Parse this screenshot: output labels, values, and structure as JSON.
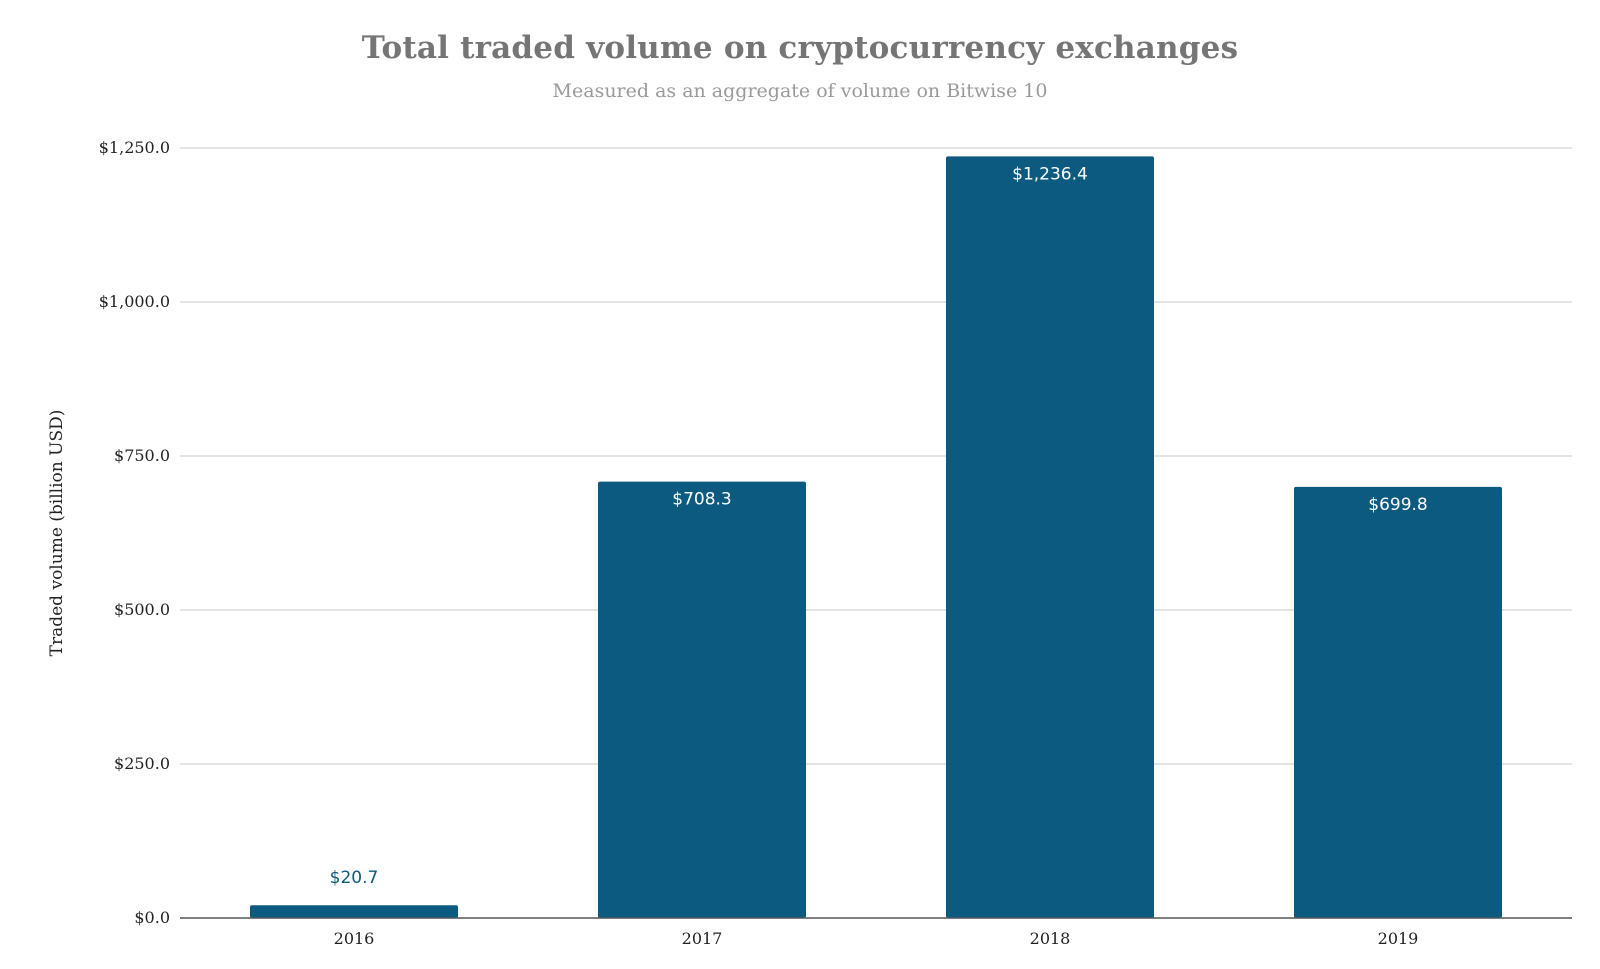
{
  "chart_data": {
    "type": "bar",
    "title": "Total traded volume on cryptocurrency exchanges",
    "subtitle": "Measured as an aggregate of volume on Bitwise 10",
    "xlabel": "",
    "ylabel": "Traded volume (billion USD)",
    "categories": [
      "2016",
      "2017",
      "2018",
      "2019"
    ],
    "values": [
      20.7,
      708.3,
      1236.4,
      699.8
    ],
    "value_labels": [
      "$20.7",
      "$708.3",
      "$1,236.4",
      "$699.8"
    ],
    "ylim": [
      0,
      1250
    ],
    "y_ticks": [
      0,
      250,
      500,
      750,
      1000,
      1250
    ],
    "y_tick_labels": [
      "$0.0",
      "$250.0",
      "$500.0",
      "$750.0",
      "$1,000.0",
      "$1,250.0"
    ],
    "grid": true,
    "legend": "none",
    "colors": {
      "bar": "#0c5a80",
      "label_outside": "#0c5a80",
      "label_inside": "#ffffff",
      "grid": "#d3d3d3",
      "axis": "#555555"
    }
  }
}
